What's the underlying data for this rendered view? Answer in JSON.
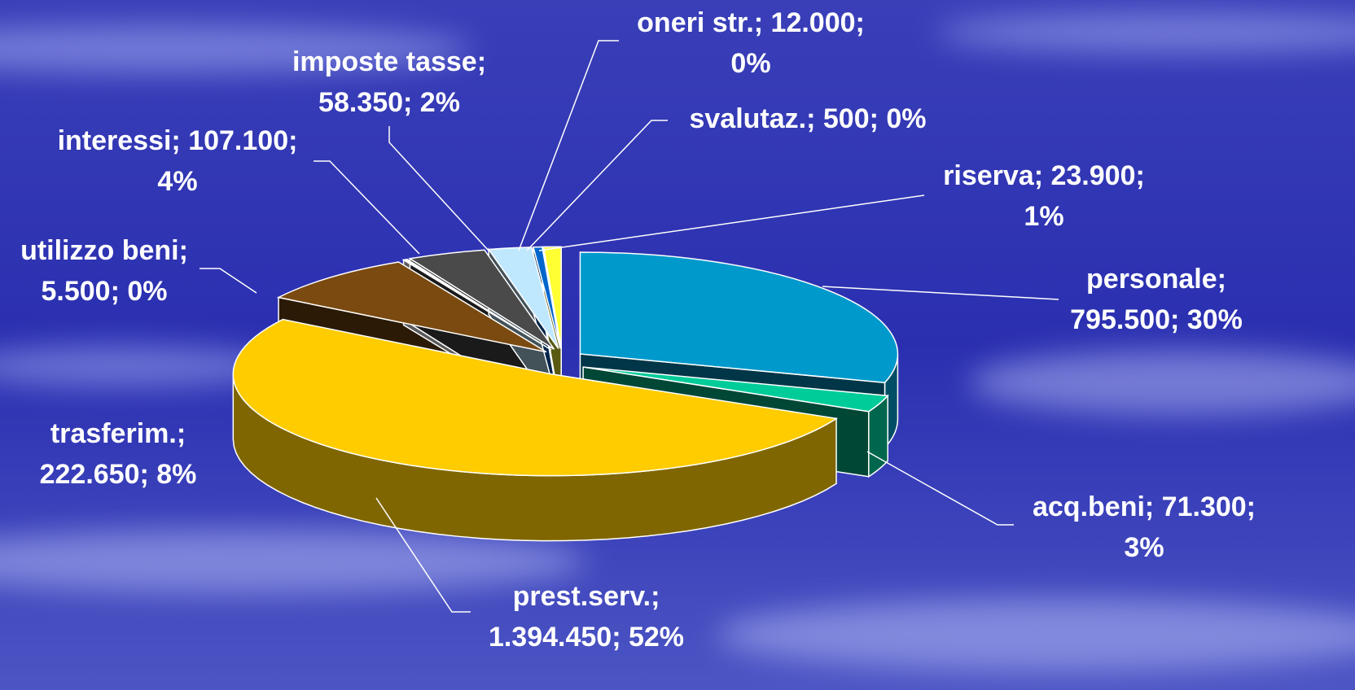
{
  "chart_data": {
    "type": "pie",
    "values": [
      795500,
      71300,
      1394450,
      222650,
      5500,
      107100,
      58350,
      12000,
      500,
      23900
    ],
    "value_labels": [
      [
        "personale;",
        "795.500; 30%"
      ],
      [
        "acq.beni; 71.300;",
        "3%"
      ],
      [
        "prest.serv.;",
        "1.394.450; 52%"
      ],
      [
        "trasferim.;",
        "222.650; 8%"
      ],
      [
        "utilizzo beni;",
        "5.500; 0%"
      ],
      [
        "interessi; 107.100;",
        "4%"
      ],
      [
        "imposte tasse;",
        "58.350; 2%"
      ],
      [
        "oneri str.; 12.000;",
        "0%"
      ],
      [
        "svalutaz.; 500; 0%"
      ],
      [
        "riserva; 23.900;",
        "1%"
      ]
    ],
    "colors": [
      "#0099cc",
      "#00cc99",
      "#ffcc00",
      "#7a4a10",
      "#ffffff",
      "#4a4a4a",
      "#bfe8ff",
      "#0066cc",
      "#ccccff",
      "#ffff33"
    ]
  }
}
